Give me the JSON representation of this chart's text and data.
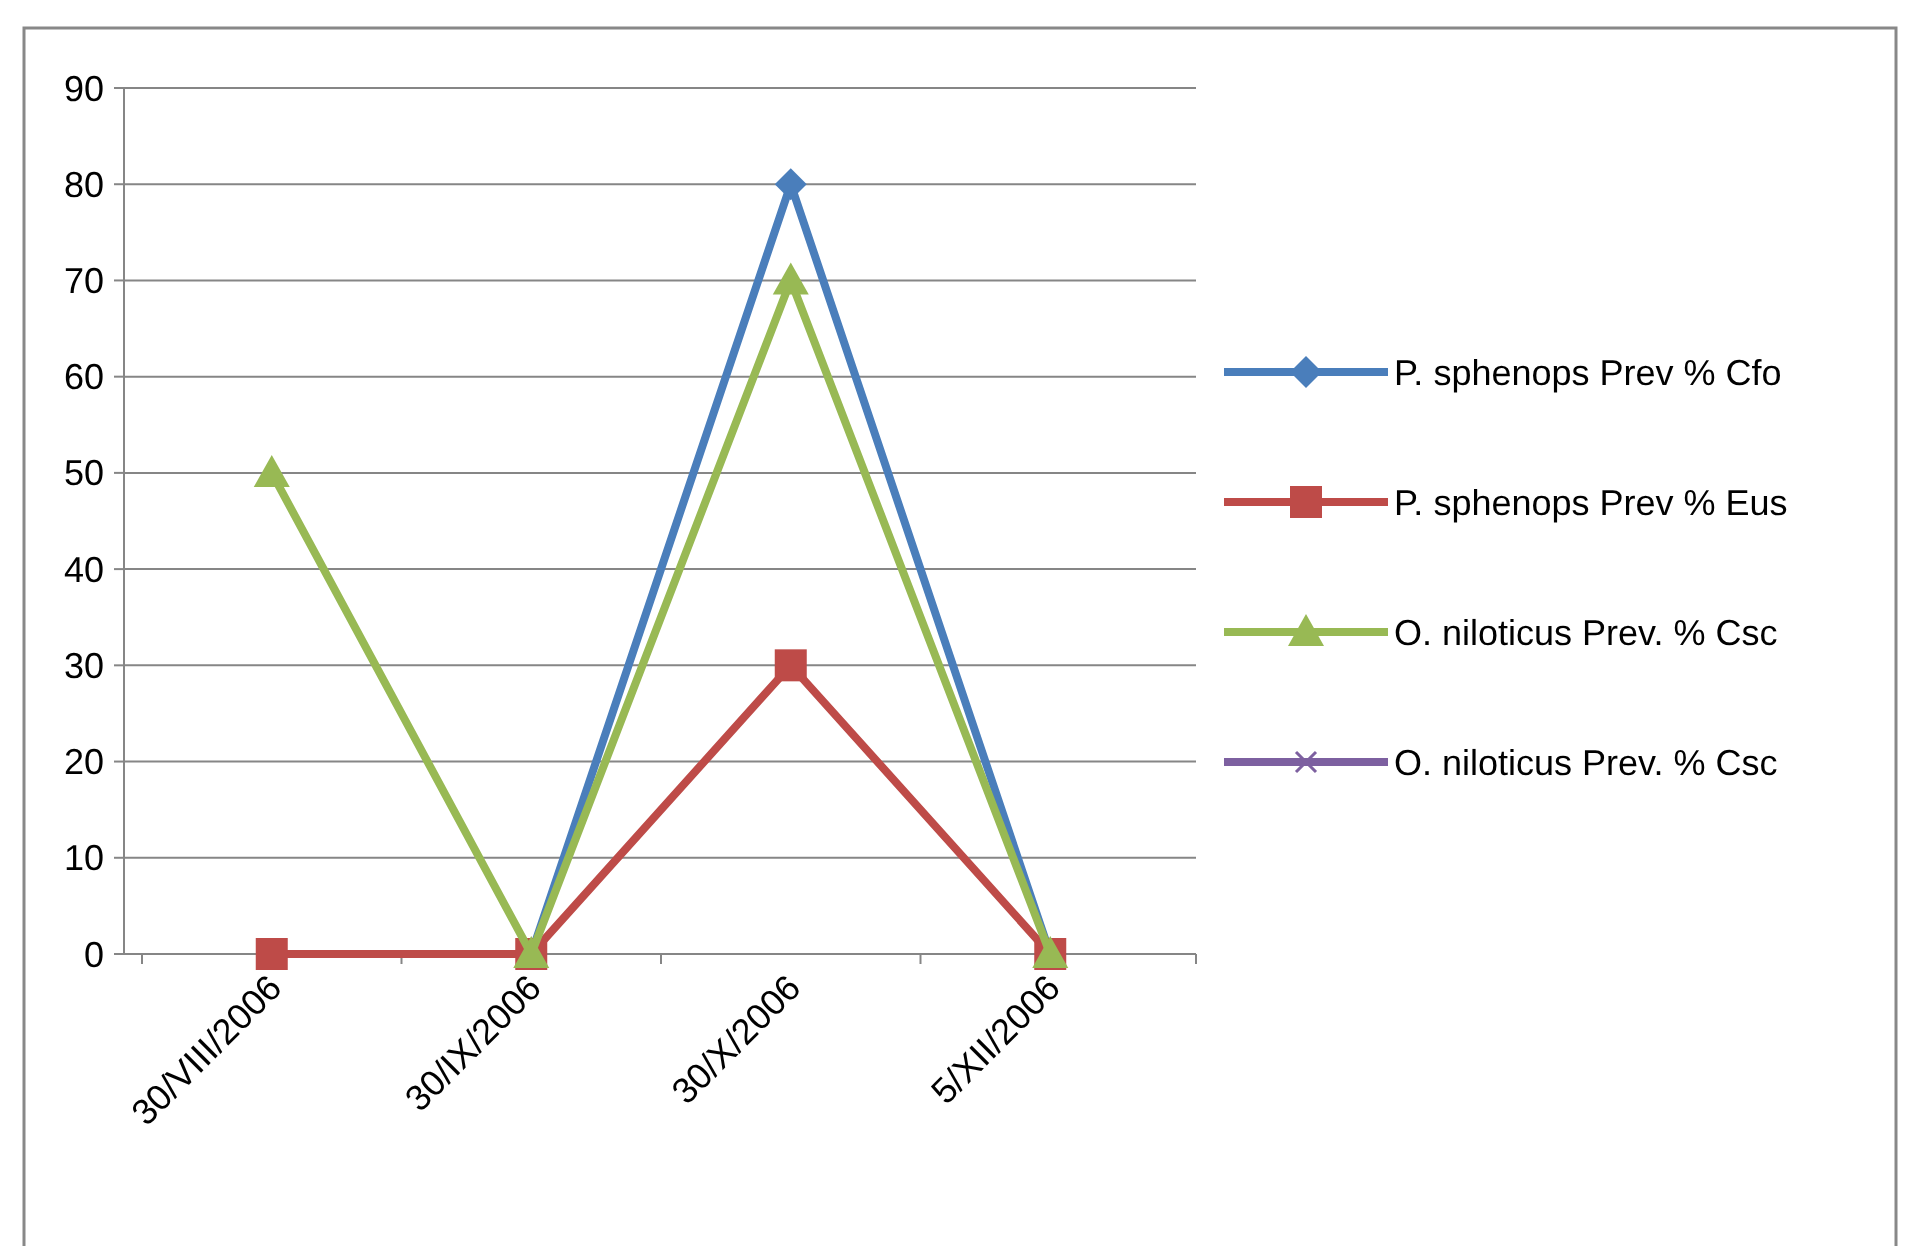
{
  "chart_data": {
    "type": "line",
    "categories": [
      "30/VIII/2006",
      "30/IX/2006",
      "30/X/2006",
      "5/XII/2006"
    ],
    "series": [
      {
        "name": "P.  sphenops Prev % Cfo",
        "color": "#4a7ebb",
        "marker": "diamond",
        "values": [
          null,
          0,
          80,
          0
        ]
      },
      {
        "name": "P.  sphenops Prev % Eus",
        "color": "#be4b48",
        "marker": "square",
        "values": [
          0,
          0,
          30,
          0
        ]
      },
      {
        "name": "O. niloticus Prev. % Csc",
        "color": "#98b954",
        "marker": "triangle",
        "values": [
          50,
          0,
          70,
          0
        ]
      },
      {
        "name": "O. niloticus Prev. % Csc",
        "color": "#7d60a0",
        "marker": "cross",
        "values": [
          null,
          null,
          null,
          null
        ]
      }
    ],
    "ylim": [
      0,
      90
    ],
    "yticks": [
      0,
      10,
      20,
      30,
      40,
      50,
      60,
      70,
      80,
      90
    ],
    "grid": "y",
    "legend": "right"
  }
}
